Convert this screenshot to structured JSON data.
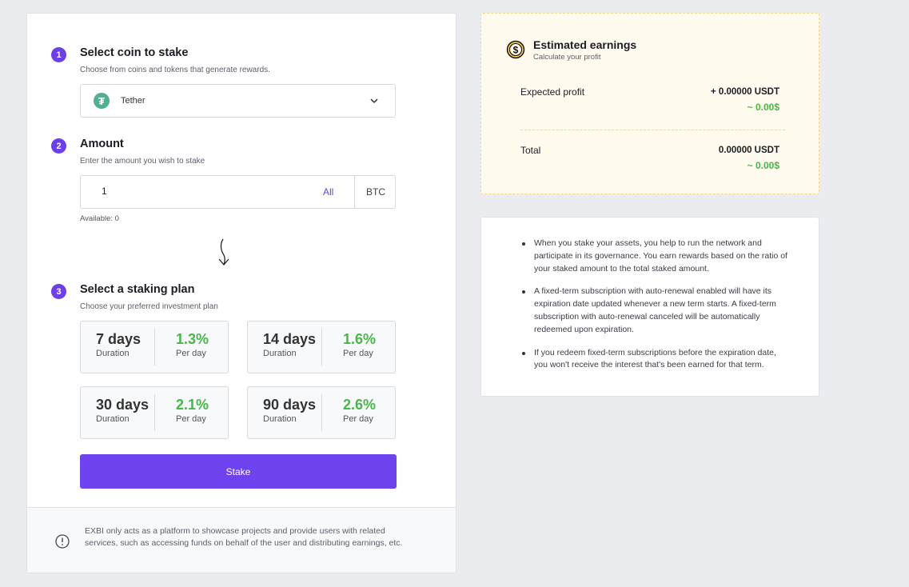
{
  "steps": [
    {
      "number": "1",
      "title": "Select coin to stake",
      "subtitle": "Choose from coins and tokens that generate rewards."
    },
    {
      "number": "2",
      "title": "Amount",
      "subtitle": "Enter the amount you wish to stake"
    },
    {
      "number": "3",
      "title": "Select a staking plan",
      "subtitle": "Choose your preferred investment plan"
    }
  ],
  "coin_select": {
    "icon_letter": "₮",
    "icon": "tether-icon",
    "selected": "Tether",
    "icon_color": "#50af95"
  },
  "amount": {
    "value": "1",
    "all_label": "All",
    "unit": "BTC",
    "available": "Available: 0"
  },
  "plans": [
    {
      "days": "7 days",
      "duration_label": "Duration",
      "rate": "1.3%",
      "per_label": "Per day"
    },
    {
      "days": "14 days",
      "duration_label": "Duration",
      "rate": "1.6%",
      "per_label": "Per day"
    },
    {
      "days": "30 days",
      "duration_label": "Duration",
      "rate": "2.1%",
      "per_label": "Per day"
    },
    {
      "days": "90 days",
      "duration_label": "Duration",
      "rate": "2.6%",
      "per_label": "Per day"
    }
  ],
  "stake_button": "Stake",
  "disclaimer": "EXBI only acts as a platform to showcase projects and provide users with related services, such as accessing funds on behalf of the user and distributing earnings, etc.",
  "earnings": {
    "title": "Estimated earnings",
    "subtitle": "Calculate your profit",
    "expected_label": "Expected profit",
    "expected_value": "+ 0.00000 USDT",
    "expected_usd": "~ 0.00$",
    "total_label": "Total",
    "total_value": "0.00000 USDT",
    "total_usd": "~ 0.00$"
  },
  "notes": [
    "When you stake your assets, you help to run the network and participate in its governance. You earn rewards based on the ratio of your staked amount to the total staked amount.",
    "A fixed-term subscription with auto-renewal enabled will have its expiration date updated whenever a new term starts. A fixed-term subscription with auto-renewal canceled will be automatically redeemed upon expiration.",
    "If you redeem fixed-term subscriptions before the expiration date, you won't receive the interest that's been earned for that term."
  ],
  "colors": {
    "accent": "#6c3fe8",
    "positive": "#47b747",
    "earnings_bg": "#fffcef"
  }
}
